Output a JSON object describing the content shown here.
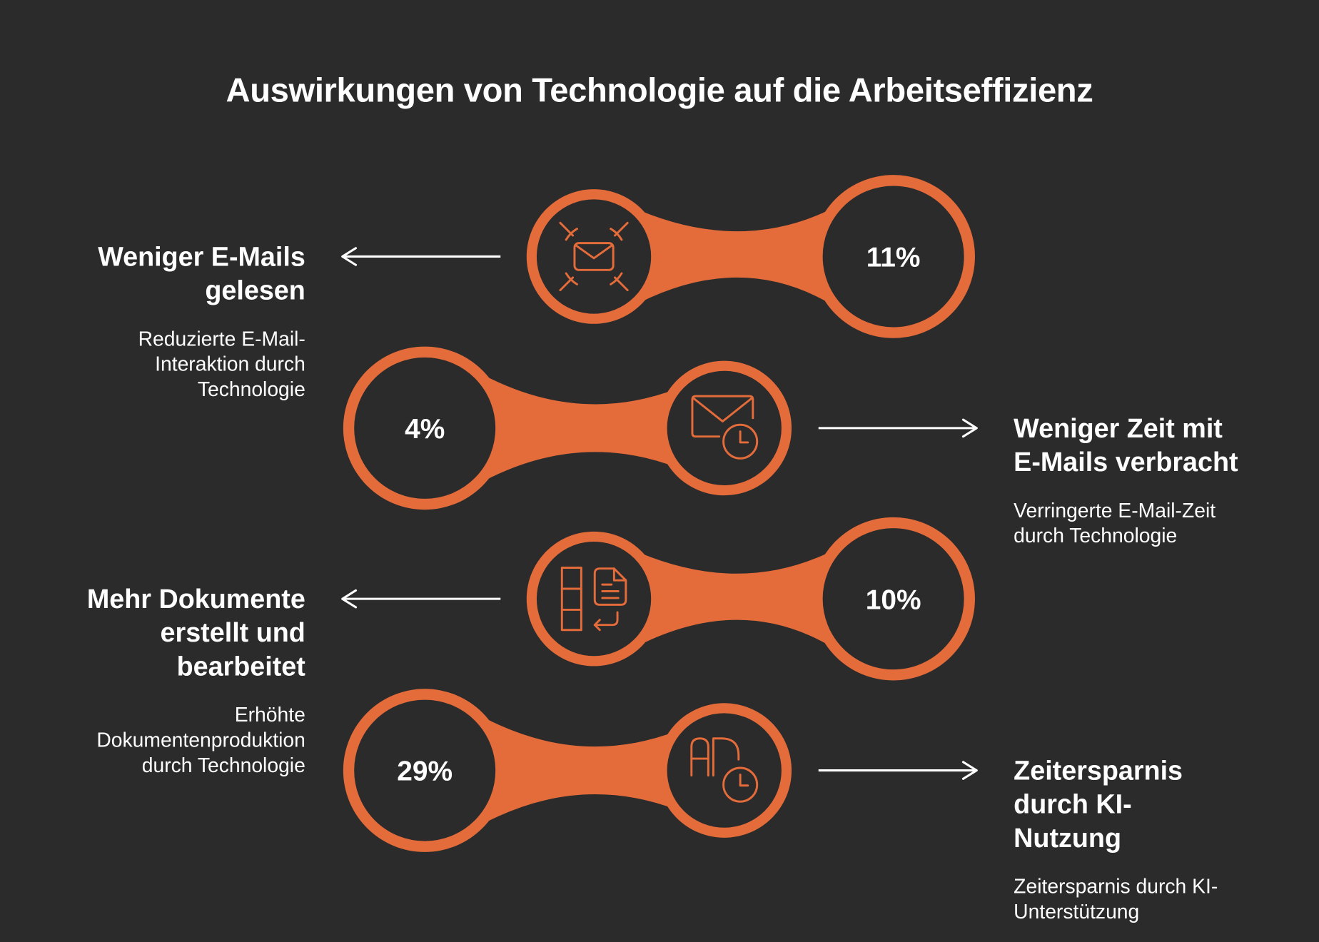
{
  "title": "Auswirkungen von Technologie auf die Arbeitseffizienz",
  "colors": {
    "background": "#2b2b2b",
    "accent": "#e46b3a",
    "text": "#ffffff"
  },
  "items": [
    {
      "value": "11%",
      "heading": "Weniger E-Mails gelesen",
      "description": "Reduzierte E-Mail-Interaktion durch Technologie",
      "icon": "email-target-icon"
    },
    {
      "value": "4%",
      "heading": "Weniger Zeit mit E-Mails verbracht",
      "description": "Verringerte E-Mail-Zeit durch Technologie",
      "icon": "email-clock-icon"
    },
    {
      "value": "10%",
      "heading": "Mehr Dokumente erstellt und bearbeitet",
      "description": "Erhöhte Dokumentenproduktion durch Technologie",
      "icon": "document-edit-icon"
    },
    {
      "value": "29%",
      "heading": "Zeitersparnis durch KI-Nutzung",
      "description": "Zeitersparnis durch KI-Unterstützung",
      "icon": "ai-clock-icon"
    }
  ]
}
